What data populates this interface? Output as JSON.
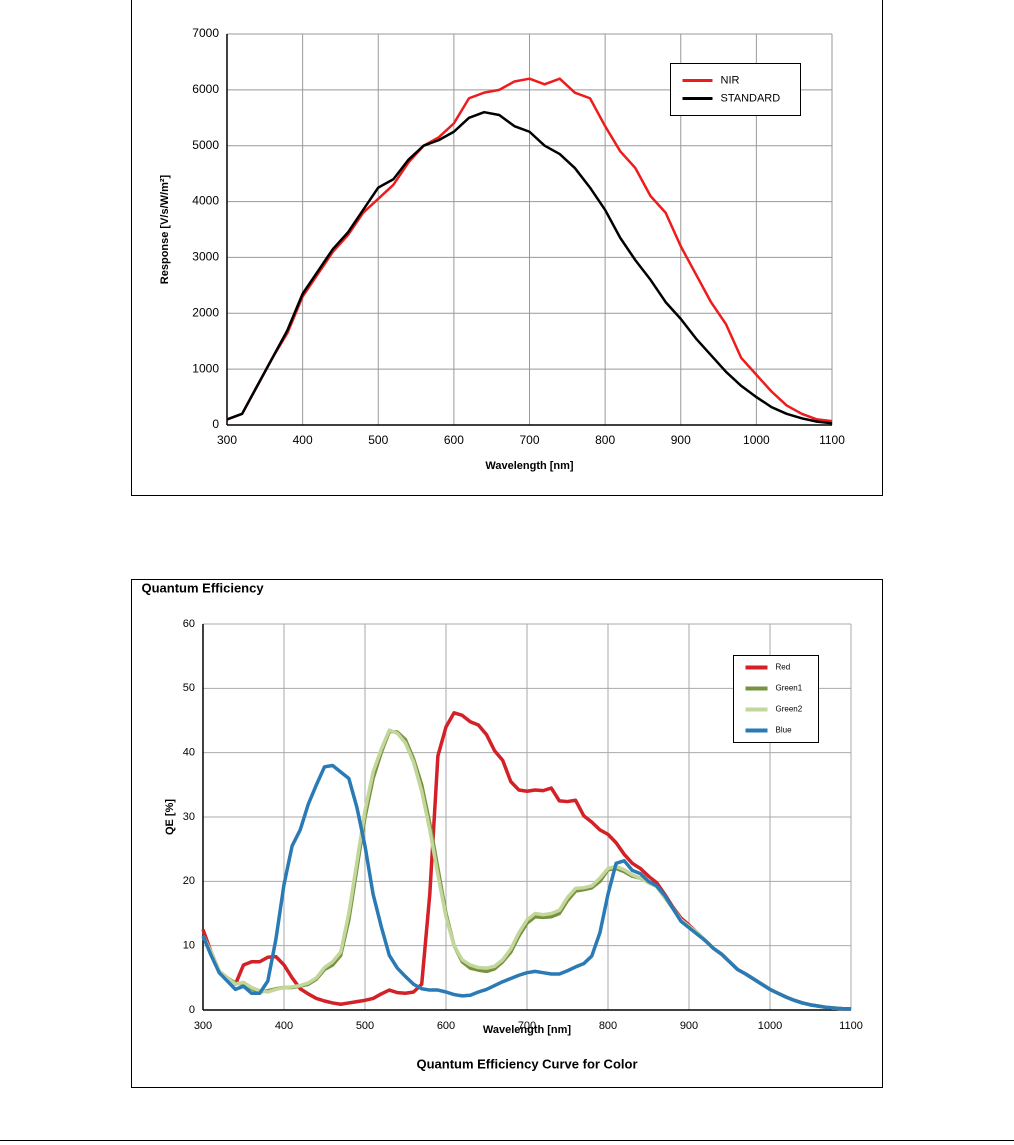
{
  "chart_data": [
    {
      "type": "line",
      "x_label": "Wavelength [nm]",
      "y_label": "Response [V/s/W/m²]",
      "x": [
        300,
        320,
        340,
        360,
        380,
        400,
        420,
        440,
        460,
        480,
        500,
        520,
        540,
        560,
        580,
        600,
        620,
        640,
        660,
        680,
        700,
        720,
        740,
        760,
        780,
        800,
        820,
        840,
        860,
        880,
        900,
        920,
        940,
        960,
        980,
        1000,
        1020,
        1040,
        1060,
        1080,
        1100
      ],
      "series": [
        {
          "name": "NIR",
          "color": "#ee1c1c",
          "values": [
            100,
            200,
            700,
            1200,
            1650,
            2300,
            2700,
            3100,
            3400,
            3800,
            4050,
            4300,
            4700,
            5000,
            5150,
            5400,
            5850,
            5950,
            6000,
            6150,
            6200,
            6100,
            6200,
            5950,
            5850,
            5350,
            4900,
            4600,
            4100,
            3800,
            3200,
            2700,
            2200,
            1800,
            1200,
            900,
            600,
            350,
            200,
            100,
            70
          ]
        },
        {
          "name": "STANDARD",
          "color": "#000000",
          "values": [
            100,
            200,
            700,
            1200,
            1700,
            2350,
            2750,
            3150,
            3450,
            3850,
            4250,
            4400,
            4750,
            5000,
            5100,
            5250,
            5500,
            5600,
            5550,
            5350,
            5250,
            5000,
            4850,
            4600,
            4250,
            3850,
            3350,
            2950,
            2600,
            2200,
            1900,
            1550,
            1250,
            950,
            700,
            500,
            320,
            200,
            120,
            60,
            30
          ]
        }
      ],
      "xlim": [
        300,
        1100
      ],
      "ylim": [
        0,
        7000
      ],
      "xticks": [
        300,
        400,
        500,
        600,
        700,
        800,
        900,
        1000,
        1100
      ],
      "yticks": [
        0,
        1000,
        2000,
        3000,
        4000,
        5000,
        6000,
        7000
      ],
      "grid": true,
      "legend": "upper right"
    },
    {
      "type": "line",
      "title": "Quantum Efficiency",
      "x_label": "Wavelength [nm]",
      "y_label": "QE [%]",
      "subtitle": "Quantum Efficiency Curve for Color",
      "x": [
        300,
        310,
        320,
        330,
        340,
        350,
        360,
        370,
        380,
        390,
        400,
        410,
        420,
        430,
        440,
        450,
        460,
        470,
        480,
        490,
        500,
        510,
        520,
        530,
        540,
        550,
        560,
        570,
        580,
        590,
        600,
        610,
        620,
        630,
        640,
        650,
        660,
        670,
        680,
        690,
        700,
        710,
        720,
        730,
        740,
        750,
        760,
        770,
        780,
        790,
        800,
        810,
        820,
        830,
        840,
        850,
        860,
        870,
        880,
        890,
        900,
        910,
        920,
        930,
        940,
        950,
        960,
        970,
        980,
        990,
        1000,
        1010,
        1020,
        1030,
        1040,
        1050,
        1060,
        1070,
        1080,
        1090,
        1100
      ],
      "series": [
        {
          "name": "Red",
          "color": "#d42027",
          "values": [
            12.5,
            9,
            6,
            5,
            4,
            7,
            7.5,
            7.5,
            8.2,
            8.3,
            7,
            5,
            3.3,
            2.5,
            1.8,
            1.4,
            1.1,
            0.9,
            1.1,
            1.3,
            1.5,
            1.8,
            2.5,
            3.1,
            2.7,
            2.6,
            2.8,
            4,
            18,
            39.5,
            44,
            46.2,
            45.8,
            44.8,
            44.3,
            42.8,
            40.3,
            38.8,
            35.5,
            34.2,
            34,
            34.2,
            34.1,
            34.5,
            32.5,
            32.4,
            32.6,
            30.2,
            29.2,
            28,
            27.3,
            26,
            24.2,
            22.8,
            22,
            20.8,
            19.8,
            18,
            16,
            14.3,
            13.2,
            12,
            10.8,
            9.6,
            8.7,
            7.5,
            6.3,
            5.6,
            4.8,
            4,
            3.2,
            2.6,
            2,
            1.5,
            1.1,
            0.8,
            0.6,
            0.4,
            0.3,
            0.2,
            0.2
          ]
        },
        {
          "name": "Green1",
          "color": "#76923c",
          "values": [
            11.5,
            9,
            6,
            5,
            4.2,
            4,
            3.3,
            2.8,
            3,
            3.3,
            3.5,
            3.5,
            3.7,
            4,
            4.8,
            6.3,
            7,
            8.5,
            14,
            22,
            30,
            36,
            40,
            43.3,
            43.2,
            42,
            39,
            35,
            29,
            22,
            15,
            10,
            7.5,
            6.5,
            6.2,
            6,
            6.4,
            7.5,
            9,
            11.5,
            13.5,
            14.5,
            14.4,
            14.5,
            15,
            17,
            18.5,
            18.7,
            19,
            20,
            21.8,
            22,
            21.5,
            20.8,
            20.5,
            19.8,
            19.2,
            17.5,
            15.8,
            14,
            13,
            12,
            10.8,
            9.6,
            8.7,
            7.5,
            6.3,
            5.6,
            4.8,
            4,
            3.2,
            2.6,
            2,
            1.5,
            1.1,
            0.8,
            0.6,
            0.4,
            0.3,
            0.2,
            0.2
          ]
        },
        {
          "name": "Green2",
          "color": "#c3d69b",
          "values": [
            11.5,
            9,
            6,
            5,
            4,
            4.3,
            3.5,
            3,
            2.8,
            3.2,
            3.5,
            3.6,
            3.8,
            4.2,
            5,
            6.6,
            7.5,
            9,
            15,
            23,
            31,
            37,
            40.5,
            43.5,
            43,
            41.5,
            38.5,
            34,
            28,
            21,
            14.5,
            10,
            7.8,
            7,
            6.6,
            6.5,
            6.8,
            7.8,
            9.5,
            12,
            14,
            15,
            14.8,
            15,
            15.5,
            17.5,
            18.9,
            19,
            19.3,
            20.5,
            22,
            22.3,
            21.8,
            21,
            20.5,
            19.8,
            19.2,
            17.5,
            15.8,
            14,
            13,
            12,
            10.8,
            9.6,
            8.7,
            7.5,
            6.3,
            5.6,
            4.8,
            4,
            3.2,
            2.6,
            2,
            1.5,
            1.1,
            0.8,
            0.6,
            0.4,
            0.3,
            0.2,
            0.2
          ]
        },
        {
          "name": "Blue",
          "color": "#2a7ab5",
          "values": [
            11.5,
            8.5,
            5.8,
            4.5,
            3.2,
            3.7,
            2.6,
            2.6,
            4.5,
            11,
            19.5,
            25.5,
            28,
            32,
            35,
            37.8,
            38,
            37,
            36,
            31.5,
            25.5,
            18,
            13,
            8.5,
            6.5,
            5.2,
            4,
            3.3,
            3.1,
            3.1,
            2.8,
            2.4,
            2.2,
            2.3,
            2.8,
            3.2,
            3.8,
            4.4,
            4.9,
            5.4,
            5.8,
            6,
            5.8,
            5.6,
            5.6,
            6.1,
            6.7,
            7.2,
            8.4,
            12,
            18,
            22.8,
            23.2,
            21.7,
            21.2,
            20,
            19.3,
            17.8,
            15.8,
            13.8,
            12.8,
            11.8,
            10.8,
            9.6,
            8.7,
            7.5,
            6.3,
            5.6,
            4.8,
            4,
            3.2,
            2.6,
            2,
            1.5,
            1.1,
            0.8,
            0.6,
            0.4,
            0.3,
            0.2,
            0.2
          ]
        }
      ],
      "xlim": [
        300,
        1100
      ],
      "ylim": [
        0,
        60
      ],
      "xticks": [
        300,
        400,
        500,
        600,
        700,
        800,
        900,
        1000,
        1100
      ],
      "yticks": [
        0,
        10,
        20,
        30,
        40,
        50,
        60
      ],
      "grid": true,
      "legend": "upper right"
    }
  ]
}
